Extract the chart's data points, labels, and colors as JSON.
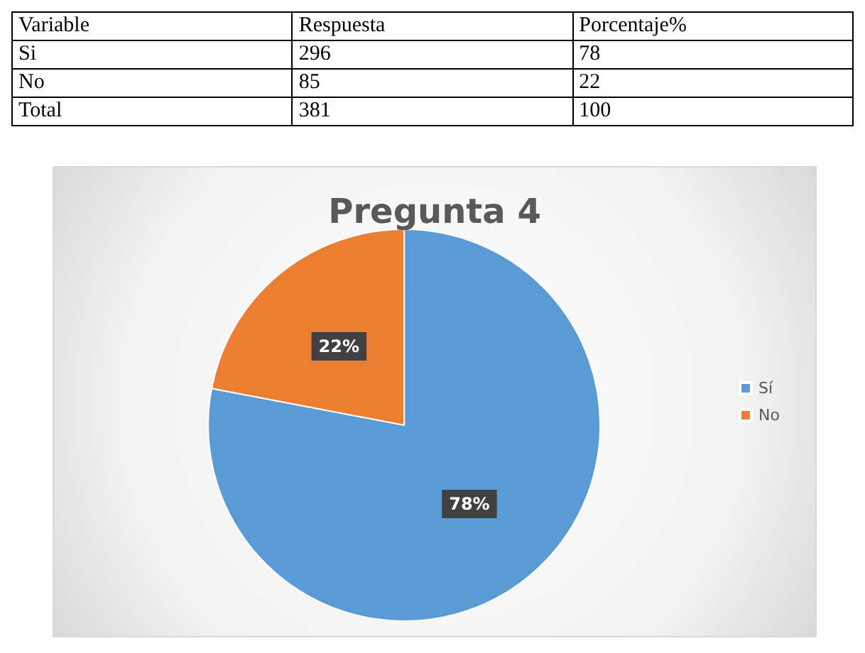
{
  "chart_data": [
    {
      "type": "other",
      "xlabel": "Variable",
      "categories": [
        "Si",
        "No",
        "Total"
      ],
      "data_labels": true,
      "series": [
        {
          "name": "Respuesta",
          "values": [
            296,
            85,
            381
          ]
        },
        {
          "name": "Porcentaje%",
          "values": [
            78,
            22,
            100
          ]
        }
      ]
    },
    {
      "type": "pie",
      "title": "Pregunta 4",
      "categories": [
        "Sí",
        "No"
      ],
      "values": [
        78,
        22
      ],
      "colors": [
        "#5b9bd5",
        "#ed7d31"
      ],
      "value_labels": [
        "78%",
        "22%"
      ],
      "legend": "right"
    }
  ]
}
